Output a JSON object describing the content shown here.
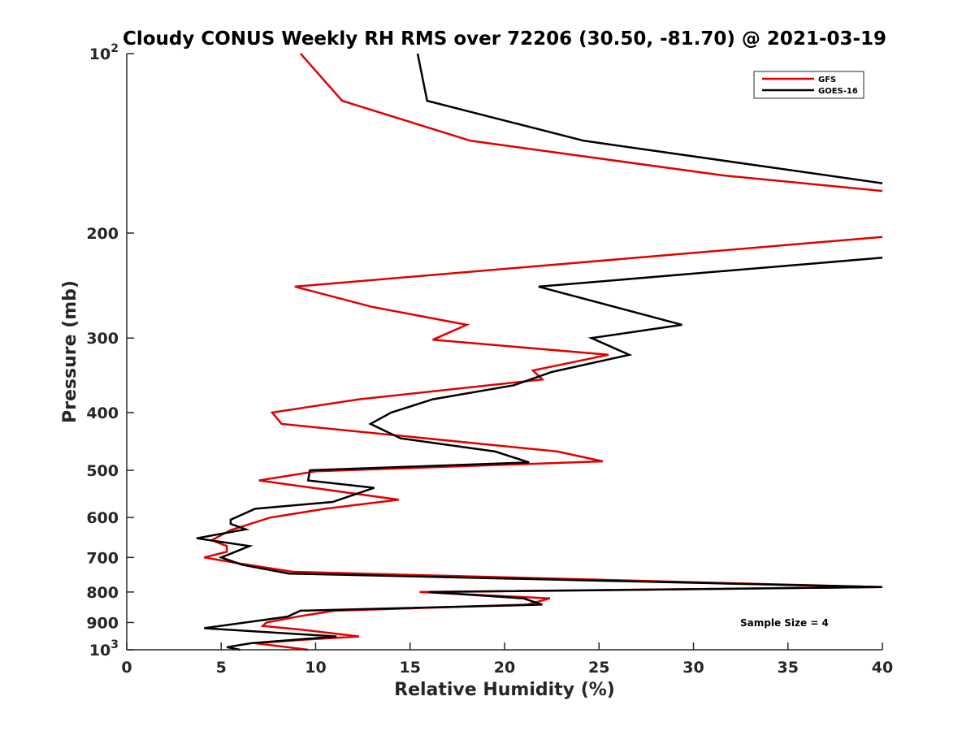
{
  "chart_data": {
    "type": "line",
    "title": "Cloudy CONUS Weekly RH RMS over 72206 (30.50, -81.70) @ 2021-03-19",
    "xlabel": "Relative Humidity (%)",
    "ylabel": "Pressure (mb)",
    "xlim": [
      0,
      40
    ],
    "ylim": [
      100,
      1000
    ],
    "yscale": "log",
    "yreversed": true,
    "grid": false,
    "legend_position": "top-right",
    "x_ticks": [
      0,
      5,
      10,
      15,
      20,
      25,
      30,
      35,
      40
    ],
    "x_tick_labels": [
      "0",
      "5",
      "10",
      "15",
      "20",
      "25",
      "30",
      "35",
      "40"
    ],
    "y_ticks": [
      {
        "value": 100,
        "label": "10",
        "sup": "2"
      },
      {
        "value": 200,
        "label": "200",
        "sup": ""
      },
      {
        "value": 300,
        "label": "300",
        "sup": ""
      },
      {
        "value": 400,
        "label": "400",
        "sup": ""
      },
      {
        "value": 500,
        "label": "500",
        "sup": ""
      },
      {
        "value": 600,
        "label": "600",
        "sup": ""
      },
      {
        "value": 700,
        "label": "700",
        "sup": ""
      },
      {
        "value": 800,
        "label": "800",
        "sup": ""
      },
      {
        "value": 900,
        "label": "900",
        "sup": ""
      },
      {
        "value": 1000,
        "label": "10",
        "sup": "3"
      }
    ],
    "annotation": "Sample Size = 4",
    "series": [
      {
        "name": "GFS",
        "color": "#e00000",
        "points": [
          [
            9.2,
            100
          ],
          [
            11.4,
            120
          ],
          [
            18.2,
            140
          ],
          [
            31.5,
            160
          ],
          [
            40,
            170
          ],
          [
            null,
            null
          ],
          [
            40,
            203
          ],
          [
            27,
            220
          ],
          [
            8.9,
            246
          ],
          [
            13,
            266
          ],
          [
            18,
            285
          ],
          [
            16.2,
            302
          ],
          [
            25.5,
            320
          ],
          [
            21.5,
            340
          ],
          [
            22,
            352
          ],
          [
            12.3,
            380
          ],
          [
            7.7,
            400
          ],
          [
            8.2,
            418
          ],
          [
            22.8,
            465
          ],
          [
            25.2,
            483
          ],
          [
            10,
            502
          ],
          [
            7,
            520
          ],
          [
            14.4,
            560
          ],
          [
            10.5,
            580
          ],
          [
            7.6,
            600
          ],
          [
            5.5,
            630
          ],
          [
            4.5,
            655
          ],
          [
            5.3,
            670
          ],
          [
            5.3,
            685
          ],
          [
            4.1,
            700
          ],
          [
            5.8,
            715
          ],
          [
            8.8,
            740
          ],
          [
            40,
            785
          ],
          [
            15.5,
            800
          ],
          [
            22.4,
            820
          ],
          [
            21.2,
            840
          ],
          [
            11,
            860
          ],
          [
            9,
            880
          ],
          [
            7.4,
            900
          ],
          [
            7.2,
            912
          ],
          [
            9.2,
            925
          ],
          [
            12.3,
            950
          ],
          [
            9.8,
            960
          ],
          [
            6.8,
            975
          ],
          [
            9.6,
            1000
          ]
        ]
      },
      {
        "name": "GOES-16",
        "color": "#000000",
        "points": [
          [
            15.4,
            100
          ],
          [
            15.9,
            120
          ],
          [
            24.2,
            140
          ],
          [
            40,
            165
          ],
          [
            null,
            null
          ],
          [
            40,
            220
          ],
          [
            21.8,
            246
          ],
          [
            29.4,
            285
          ],
          [
            24.6,
            300
          ],
          [
            26.6,
            320
          ],
          [
            22.5,
            342
          ],
          [
            20.5,
            360
          ],
          [
            16.2,
            380
          ],
          [
            14,
            400
          ],
          [
            12.9,
            418
          ],
          [
            14.5,
            442
          ],
          [
            19.5,
            465
          ],
          [
            21.3,
            485
          ],
          [
            9.7,
            500
          ],
          [
            9.6,
            520
          ],
          [
            13.1,
            535
          ],
          [
            10.9,
            565
          ],
          [
            6.8,
            580
          ],
          [
            5.5,
            605
          ],
          [
            5.5,
            615
          ],
          [
            6.3,
            628
          ],
          [
            3.7,
            650
          ],
          [
            6.5,
            670
          ],
          [
            5.5,
            690
          ],
          [
            5,
            700
          ],
          [
            6.1,
            720
          ],
          [
            8.6,
            745
          ],
          [
            40,
            785
          ],
          [
            16,
            800
          ],
          [
            21,
            820
          ],
          [
            22,
            840
          ],
          [
            9.2,
            860
          ],
          [
            8.5,
            880
          ],
          [
            4.1,
            920
          ],
          [
            11.1,
            950
          ],
          [
            6.6,
            975
          ],
          [
            5.3,
            990
          ],
          [
            6,
            1000
          ]
        ]
      }
    ]
  }
}
